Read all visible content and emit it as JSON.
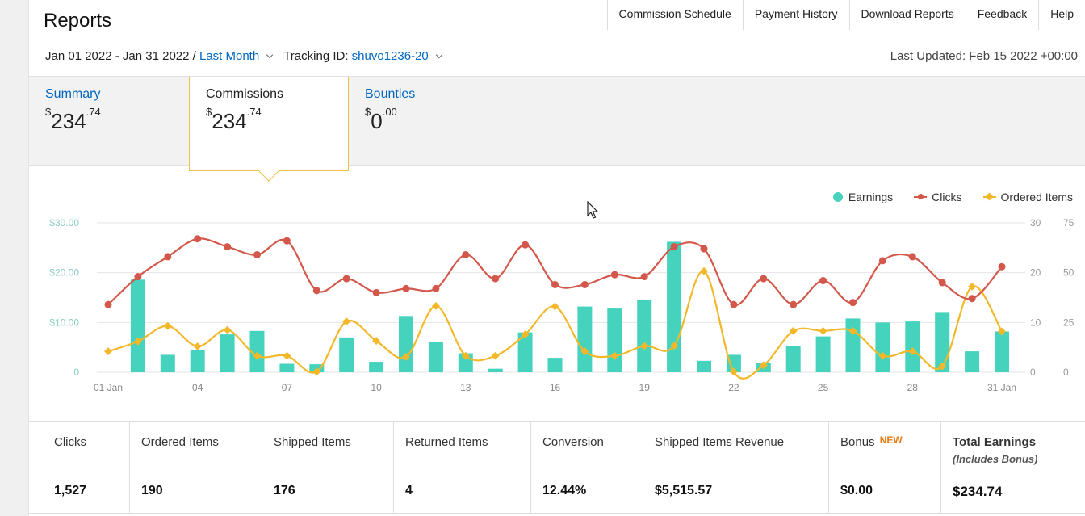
{
  "header": {
    "title": "Reports",
    "nav": [
      "Commission Schedule",
      "Payment History",
      "Download Reports",
      "Feedback",
      "Help"
    ]
  },
  "filters": {
    "date_range": "Jan 01 2022 - Jan 31 2022 /",
    "period": "Last Month",
    "tracking_label": "Tracking ID:",
    "tracking_id": "shuvo1236-20",
    "last_updated": "Last Updated: Feb 15 2022 +00:00"
  },
  "tabs": [
    {
      "name": "Summary",
      "currency": "$",
      "whole": "234",
      "cents": ".74"
    },
    {
      "name": "Commissions",
      "currency": "$",
      "whole": "234",
      "cents": ".74"
    },
    {
      "name": "Bounties",
      "currency": "$",
      "whole": "0",
      "cents": ".00"
    }
  ],
  "legend": {
    "earnings": "Earnings",
    "clicks": "Clicks",
    "ordered": "Ordered Items"
  },
  "colors": {
    "earnings": "#46d3bd",
    "clicks": "#d3574a",
    "ordered": "#f3b82a",
    "link": "#0066c0",
    "accent": "#f0c14b"
  },
  "chart_data": {
    "type": "bar",
    "x": [
      1,
      2,
      3,
      4,
      5,
      6,
      7,
      8,
      9,
      10,
      11,
      12,
      13,
      14,
      15,
      16,
      17,
      18,
      19,
      20,
      21,
      22,
      23,
      24,
      25,
      26,
      27,
      28,
      29,
      30,
      31
    ],
    "x_tick_labels": [
      "01 Jan",
      "04",
      "07",
      "10",
      "13",
      "16",
      "19",
      "22",
      "25",
      "28",
      "31 Jan"
    ],
    "x_tick_positions": [
      1,
      4,
      7,
      10,
      13,
      16,
      19,
      22,
      25,
      28,
      31
    ],
    "series": [
      {
        "name": "Earnings",
        "type": "bar",
        "axis": "left",
        "ylim": [
          0,
          30
        ],
        "ticks": [
          "0",
          "$10.00",
          "$20.00",
          "$30.00"
        ],
        "values": [
          0,
          18.6,
          3.5,
          4.5,
          7.6,
          8.3,
          1.7,
          1.6,
          7.0,
          2.1,
          11.3,
          6.1,
          3.8,
          0.7,
          8.0,
          2.9,
          13.2,
          12.8,
          14.6,
          26.2,
          2.3,
          3.5,
          1.9,
          5.3,
          7.2,
          10.8,
          10.0,
          10.2,
          12.1,
          4.2,
          8.2
        ]
      },
      {
        "name": "Clicks",
        "type": "line",
        "axis": "right-outer",
        "ylim": [
          0,
          75
        ],
        "ticks": [
          "0",
          "25",
          "50",
          "75"
        ],
        "values": [
          34,
          48,
          58,
          67,
          63,
          59,
          66,
          41,
          47,
          40,
          42,
          42,
          59,
          47,
          64,
          44,
          44,
          49,
          48,
          63,
          62,
          34,
          47,
          34,
          46,
          35,
          56,
          58,
          45,
          37,
          53
        ]
      },
      {
        "name": "Ordered Items",
        "type": "line",
        "axis": "right-inner",
        "ylim": [
          0,
          30
        ],
        "ticks": [
          "0",
          "10",
          "20",
          "30"
        ],
        "values": [
          4.2,
          6.2,
          9.3,
          5.2,
          8.5,
          3.3,
          3.3,
          0.1,
          10.2,
          6.3,
          3.1,
          13.3,
          3.3,
          3.3,
          7.6,
          13.2,
          4.2,
          3.3,
          5.3,
          5.3,
          20.3,
          0.1,
          1.4,
          8.3,
          8.3,
          8.3,
          3.3,
          4.2,
          1.2,
          17.2,
          8.2
        ]
      }
    ]
  },
  "stats": [
    {
      "label": "Clicks",
      "value": "1,527"
    },
    {
      "label": "Ordered Items",
      "value": "190"
    },
    {
      "label": "Shipped Items",
      "value": "176"
    },
    {
      "label": "Returned Items",
      "value": "4"
    },
    {
      "label": "Conversion",
      "value": "12.44%"
    },
    {
      "label": "Shipped Items Revenue",
      "value": "$5,515.57"
    },
    {
      "label": "Bonus",
      "badge": "NEW",
      "value": "$0.00"
    },
    {
      "label": "Total Earnings",
      "sub": "(Includes Bonus)",
      "value": "$234.74"
    }
  ]
}
